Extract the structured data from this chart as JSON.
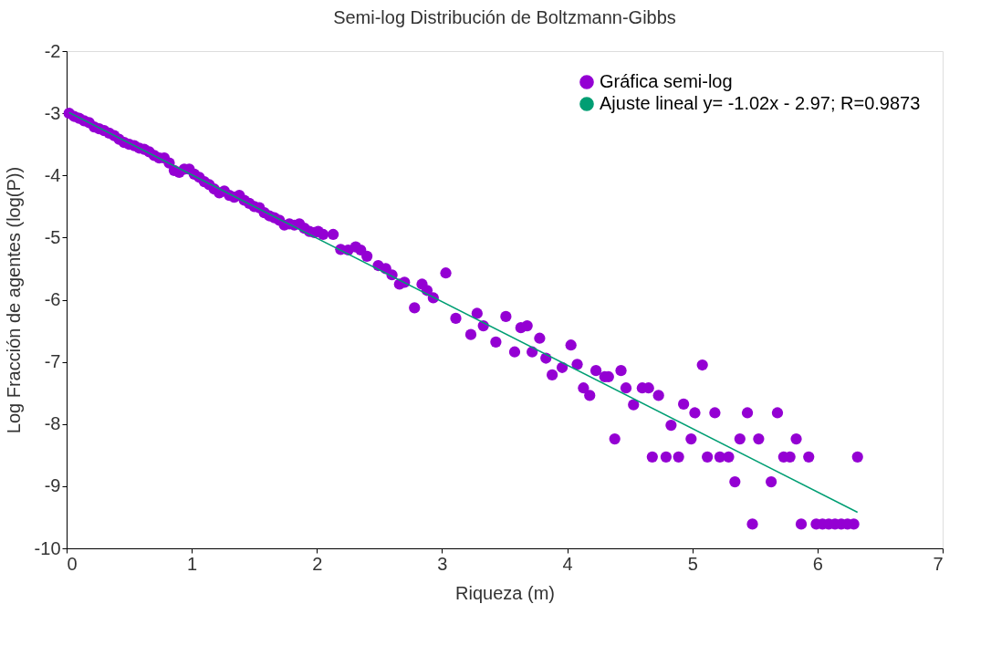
{
  "chart_data": {
    "type": "scatter",
    "title": "Semi-log Distribución de Boltzmann-Gibbs",
    "xlabel": "Riqueza (m)",
    "ylabel": "Log Fracción de agentes (log(P))",
    "xlim": [
      0,
      7
    ],
    "xticks": [
      0,
      1,
      2,
      3,
      4,
      5,
      6,
      7
    ],
    "ylim": [
      -10,
      -2
    ],
    "yticks": [
      -10,
      -9,
      -8,
      -7,
      -6,
      -5,
      -4,
      -3,
      -2
    ],
    "grid": false,
    "legend": "top right",
    "series": [
      {
        "name": "Gráfica semi-log",
        "color": "#9400d3",
        "marker": "circle",
        "x": [
          0.02,
          0.06,
          0.1,
          0.14,
          0.18,
          0.22,
          0.26,
          0.3,
          0.34,
          0.38,
          0.42,
          0.46,
          0.5,
          0.54,
          0.58,
          0.62,
          0.66,
          0.7,
          0.74,
          0.78,
          0.82,
          0.86,
          0.9,
          0.94,
          0.98,
          1.02,
          1.06,
          1.1,
          1.14,
          1.18,
          1.22,
          1.26,
          1.3,
          1.34,
          1.38,
          1.42,
          1.46,
          1.5,
          1.54,
          1.58,
          1.62,
          1.66,
          1.7,
          1.74,
          1.78,
          1.82,
          1.86,
          1.9,
          1.94,
          1.98,
          2.01,
          2.05,
          2.13,
          2.19,
          2.25,
          2.31,
          2.35,
          2.4,
          2.49,
          2.55,
          2.6,
          2.66,
          2.7,
          2.78,
          2.84,
          2.88,
          2.93,
          3.03,
          3.11,
          3.23,
          3.28,
          3.33,
          3.43,
          3.51,
          3.58,
          3.63,
          3.68,
          3.72,
          3.78,
          3.83,
          3.88,
          3.96,
          4.03,
          4.08,
          4.13,
          4.18,
          4.23,
          4.3,
          4.33,
          4.38,
          4.43,
          4.47,
          4.53,
          4.6,
          4.65,
          4.68,
          4.73,
          4.79,
          4.83,
          4.89,
          4.93,
          4.99,
          5.02,
          5.08,
          5.12,
          5.18,
          5.22,
          5.29,
          5.34,
          5.38,
          5.44,
          5.48,
          5.53,
          5.63,
          5.68,
          5.73,
          5.78,
          5.83,
          5.87,
          5.93,
          5.99,
          6.04,
          6.09,
          6.14,
          6.19,
          6.24,
          6.29,
          6.32
        ],
        "values": [
          -3.0,
          -3.05,
          -3.08,
          -3.12,
          -3.15,
          -3.22,
          -3.25,
          -3.28,
          -3.32,
          -3.36,
          -3.42,
          -3.47,
          -3.5,
          -3.52,
          -3.56,
          -3.58,
          -3.62,
          -3.68,
          -3.72,
          -3.72,
          -3.8,
          -3.92,
          -3.95,
          -3.9,
          -3.9,
          -3.98,
          -4.03,
          -4.1,
          -4.15,
          -4.22,
          -4.28,
          -4.25,
          -4.32,
          -4.35,
          -4.32,
          -4.4,
          -4.45,
          -4.5,
          -4.52,
          -4.6,
          -4.65,
          -4.68,
          -4.72,
          -4.8,
          -4.78,
          -4.8,
          -4.78,
          -4.85,
          -4.9,
          -4.92,
          -4.9,
          -4.95,
          -4.95,
          -5.19,
          -5.2,
          -5.15,
          -5.2,
          -5.3,
          -5.45,
          -5.5,
          -5.6,
          -5.75,
          -5.72,
          -6.13,
          -5.75,
          -5.85,
          -5.97,
          -5.57,
          -6.3,
          -6.56,
          -6.22,
          -6.42,
          -6.68,
          -6.27,
          -6.84,
          -6.45,
          -6.42,
          -6.84,
          -6.62,
          -6.94,
          -7.21,
          -7.09,
          -6.73,
          -7.04,
          -7.42,
          -7.54,
          -7.14,
          -7.24,
          -7.24,
          -8.24,
          -7.14,
          -7.42,
          -7.69,
          -7.42,
          -7.42,
          -8.53,
          -7.54,
          -8.53,
          -8.02,
          -8.53,
          -7.68,
          -8.24,
          -7.82,
          -7.05,
          -8.53,
          -7.82,
          -8.53,
          -8.53,
          -8.93,
          -8.24,
          -7.82,
          -9.61,
          -8.24,
          -8.93,
          -7.82,
          -8.53,
          -8.53,
          -8.24,
          -9.61,
          -8.53,
          -9.61,
          -9.61,
          -9.61,
          -9.61,
          -9.61,
          -9.61,
          -9.61,
          -8.53
        ]
      },
      {
        "name": "Ajuste lineal y= -1.02x - 2.97; R=0.9873",
        "color": "#009e73",
        "type": "line",
        "x": [
          0.02,
          6.32
        ],
        "values": [
          -2.99,
          -9.42
        ]
      }
    ]
  }
}
